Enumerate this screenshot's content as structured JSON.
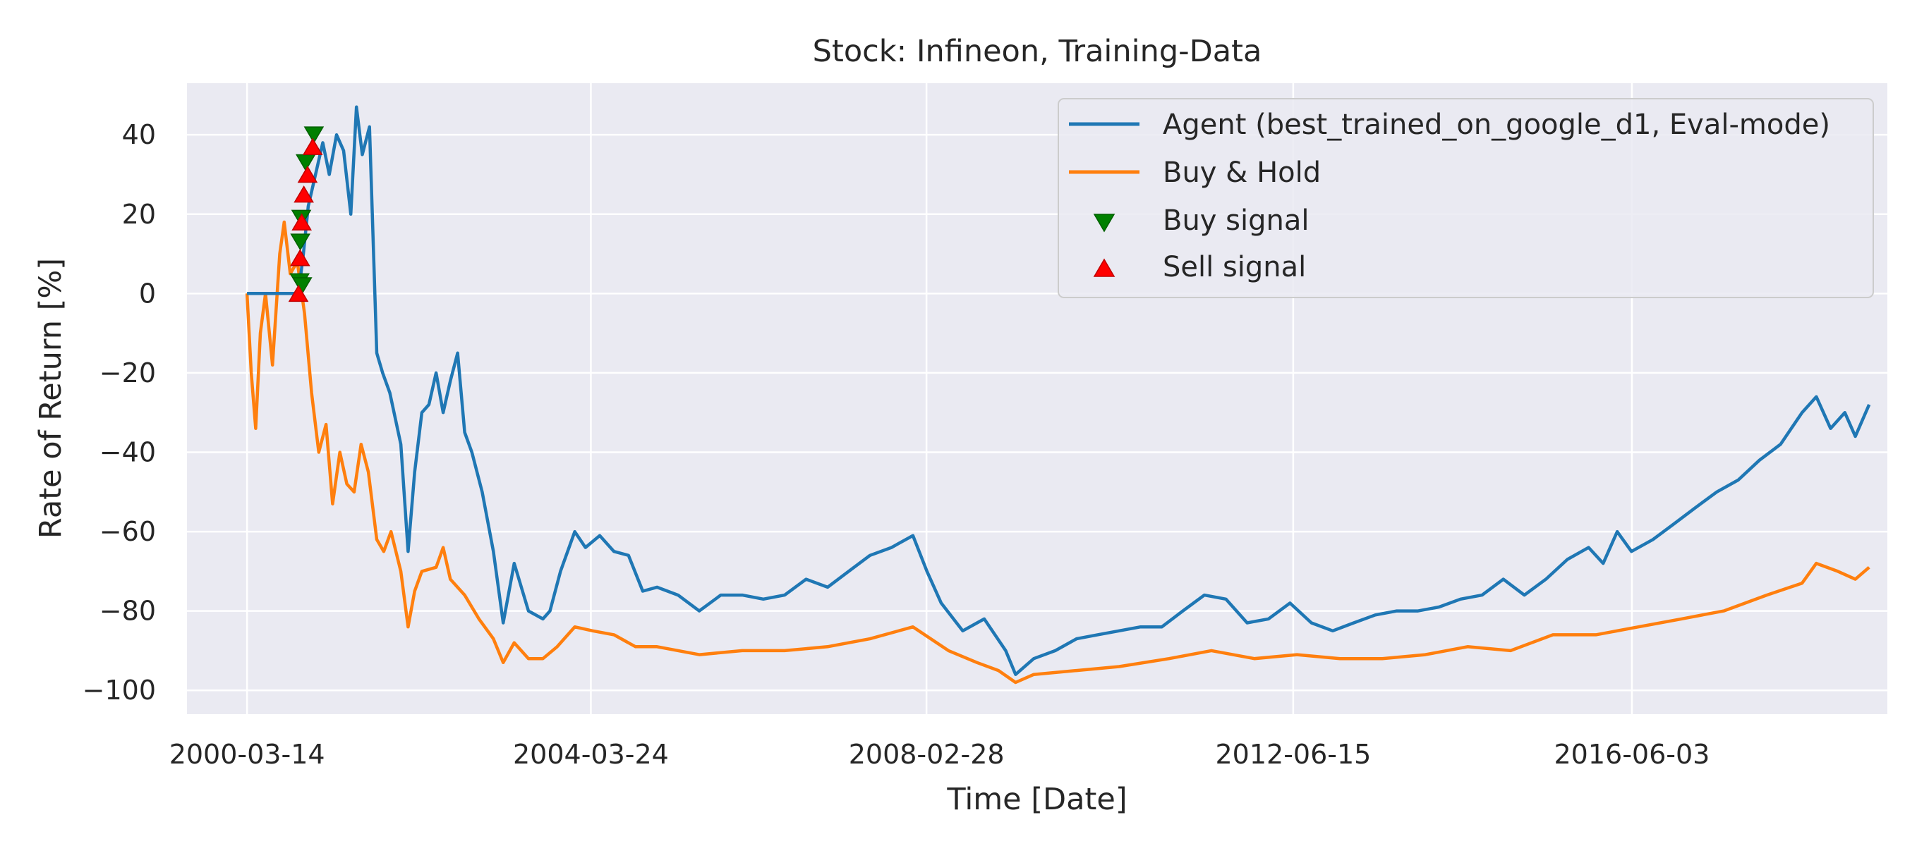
{
  "chart_data": {
    "type": "line",
    "title": "Stock: Infineon, Training-Data",
    "xlabel": "Time [Date]",
    "ylabel": "Rate of Return [%]",
    "xlim": [
      "1999-07-01",
      "2019-06-01"
    ],
    "ylim": [
      -106,
      53
    ],
    "xticks": [
      "2000-03-14",
      "2004-03-24",
      "2008-02-28",
      "2012-06-15",
      "2016-06-03"
    ],
    "yticks": [
      -100,
      -80,
      -60,
      -40,
      -20,
      0,
      20,
      40
    ],
    "grid": true,
    "legend_position": "top-right",
    "colors": {
      "background": "#eaeaf2",
      "grid": "#ffffff",
      "agent": "#1f77b4",
      "buy_hold": "#ff7f0e",
      "buy_signal": "#008000",
      "sell_signal": "#ff0000"
    },
    "series": [
      {
        "name": "Agent (best_trained_on_google_d1, Eval-mode)",
        "color": "#1f77b4",
        "points": [
          [
            "2000-03-14",
            0
          ],
          [
            "2000-06-01",
            0
          ],
          [
            "2000-09-01",
            0
          ],
          [
            "2000-10-20",
            0
          ],
          [
            "2000-11-10",
            10
          ],
          [
            "2000-12-01",
            22
          ],
          [
            "2001-01-01",
            30
          ],
          [
            "2001-02-01",
            38
          ],
          [
            "2001-03-01",
            30
          ],
          [
            "2001-04-01",
            40
          ],
          [
            "2001-05-01",
            36
          ],
          [
            "2001-06-01",
            20
          ],
          [
            "2001-06-25",
            47
          ],
          [
            "2001-07-20",
            35
          ],
          [
            "2001-08-20",
            42
          ],
          [
            "2001-09-20",
            -15
          ],
          [
            "2001-10-15",
            -20
          ],
          [
            "2001-11-15",
            -25
          ],
          [
            "2002-01-01",
            -38
          ],
          [
            "2002-02-01",
            -65
          ],
          [
            "2002-03-01",
            -45
          ],
          [
            "2002-04-01",
            -30
          ],
          [
            "2002-05-01",
            -28
          ],
          [
            "2002-06-01",
            -20
          ],
          [
            "2002-07-01",
            -30
          ],
          [
            "2002-08-01",
            -22
          ],
          [
            "2002-09-01",
            -15
          ],
          [
            "2002-10-01",
            -35
          ],
          [
            "2002-11-01",
            -40
          ],
          [
            "2002-12-15",
            -50
          ],
          [
            "2003-02-01",
            -65
          ],
          [
            "2003-03-15",
            -83
          ],
          [
            "2003-05-01",
            -68
          ],
          [
            "2003-07-01",
            -80
          ],
          [
            "2003-09-01",
            -82
          ],
          [
            "2003-10-01",
            -80
          ],
          [
            "2003-11-15",
            -70
          ],
          [
            "2004-01-15",
            -60
          ],
          [
            "2004-03-01",
            -64
          ],
          [
            "2004-05-01",
            -61
          ],
          [
            "2004-07-01",
            -65
          ],
          [
            "2004-09-01",
            -66
          ],
          [
            "2004-11-01",
            -75
          ],
          [
            "2005-01-01",
            -74
          ],
          [
            "2005-04-01",
            -76
          ],
          [
            "2005-07-01",
            -80
          ],
          [
            "2005-10-01",
            -76
          ],
          [
            "2006-01-01",
            -76
          ],
          [
            "2006-04-01",
            -77
          ],
          [
            "2006-07-01",
            -76
          ],
          [
            "2006-10-01",
            -72
          ],
          [
            "2007-01-01",
            -74
          ],
          [
            "2007-04-01",
            -70
          ],
          [
            "2007-07-01",
            -66
          ],
          [
            "2007-10-01",
            -64
          ],
          [
            "2008-01-01",
            -61
          ],
          [
            "2008-03-01",
            -70
          ],
          [
            "2008-05-01",
            -78
          ],
          [
            "2008-08-01",
            -85
          ],
          [
            "2008-11-01",
            -82
          ],
          [
            "2009-02-01",
            -90
          ],
          [
            "2009-03-15",
            -96
          ],
          [
            "2009-06-01",
            -92
          ],
          [
            "2009-09-01",
            -90
          ],
          [
            "2009-12-01",
            -87
          ],
          [
            "2010-03-01",
            -86
          ],
          [
            "2010-06-01",
            -85
          ],
          [
            "2010-09-01",
            -84
          ],
          [
            "2010-12-01",
            -84
          ],
          [
            "2011-03-01",
            -80
          ],
          [
            "2011-06-01",
            -76
          ],
          [
            "2011-09-01",
            -77
          ],
          [
            "2011-12-01",
            -83
          ],
          [
            "2012-03-01",
            -82
          ],
          [
            "2012-06-01",
            -78
          ],
          [
            "2012-09-01",
            -83
          ],
          [
            "2012-12-01",
            -85
          ],
          [
            "2013-03-01",
            -83
          ],
          [
            "2013-06-01",
            -81
          ],
          [
            "2013-09-01",
            -80
          ],
          [
            "2013-12-01",
            -80
          ],
          [
            "2014-03-01",
            -79
          ],
          [
            "2014-06-01",
            -77
          ],
          [
            "2014-09-01",
            -76
          ],
          [
            "2014-12-01",
            -72
          ],
          [
            "2015-03-01",
            -76
          ],
          [
            "2015-06-01",
            -72
          ],
          [
            "2015-09-01",
            -67
          ],
          [
            "2015-12-01",
            -64
          ],
          [
            "2016-02-01",
            -68
          ],
          [
            "2016-04-01",
            -60
          ],
          [
            "2016-06-01",
            -65
          ],
          [
            "2016-09-01",
            -62
          ],
          [
            "2016-12-01",
            -58
          ],
          [
            "2017-03-01",
            -54
          ],
          [
            "2017-06-01",
            -50
          ],
          [
            "2017-09-01",
            -47
          ],
          [
            "2017-12-01",
            -42
          ],
          [
            "2018-03-01",
            -38
          ],
          [
            "2018-06-01",
            -30
          ],
          [
            "2018-08-01",
            -26
          ],
          [
            "2018-10-01",
            -34
          ],
          [
            "2018-12-01",
            -30
          ],
          [
            "2019-01-15",
            -36
          ],
          [
            "2019-03-15",
            -28
          ]
        ]
      },
      {
        "name": "Buy & Hold",
        "color": "#ff7f0e",
        "points": [
          [
            "2000-03-14",
            0
          ],
          [
            "2000-04-01",
            -20
          ],
          [
            "2000-04-20",
            -34
          ],
          [
            "2000-05-10",
            -10
          ],
          [
            "2000-06-01",
            0
          ],
          [
            "2000-07-01",
            -18
          ],
          [
            "2000-08-01",
            10
          ],
          [
            "2000-08-20",
            18
          ],
          [
            "2000-09-15",
            5
          ],
          [
            "2000-10-15",
            8
          ],
          [
            "2000-11-15",
            -5
          ],
          [
            "2000-12-15",
            -25
          ],
          [
            "2001-01-15",
            -40
          ],
          [
            "2001-02-15",
            -33
          ],
          [
            "2001-03-15",
            -53
          ],
          [
            "2001-04-15",
            -40
          ],
          [
            "2001-05-15",
            -48
          ],
          [
            "2001-06-15",
            -50
          ],
          [
            "2001-07-15",
            -38
          ],
          [
            "2001-08-15",
            -45
          ],
          [
            "2001-09-20",
            -62
          ],
          [
            "2001-10-20",
            -65
          ],
          [
            "2001-11-20",
            -60
          ],
          [
            "2002-01-01",
            -70
          ],
          [
            "2002-02-01",
            -84
          ],
          [
            "2002-03-01",
            -75
          ],
          [
            "2002-04-01",
            -70
          ],
          [
            "2002-06-01",
            -69
          ],
          [
            "2002-07-01",
            -64
          ],
          [
            "2002-08-01",
            -72
          ],
          [
            "2002-10-01",
            -76
          ],
          [
            "2002-12-01",
            -82
          ],
          [
            "2003-02-01",
            -87
          ],
          [
            "2003-03-15",
            -93
          ],
          [
            "2003-05-01",
            -88
          ],
          [
            "2003-07-01",
            -92
          ],
          [
            "2003-09-01",
            -92
          ],
          [
            "2003-11-01",
            -89
          ],
          [
            "2004-01-15",
            -84
          ],
          [
            "2004-04-01",
            -85
          ],
          [
            "2004-07-01",
            -86
          ],
          [
            "2004-10-01",
            -89
          ],
          [
            "2005-01-01",
            -89
          ],
          [
            "2005-07-01",
            -91
          ],
          [
            "2006-01-01",
            -90
          ],
          [
            "2006-07-01",
            -90
          ],
          [
            "2007-01-01",
            -89
          ],
          [
            "2007-07-01",
            -87
          ],
          [
            "2008-01-01",
            -84
          ],
          [
            "2008-06-01",
            -90
          ],
          [
            "2008-10-01",
            -93
          ],
          [
            "2009-01-01",
            -95
          ],
          [
            "2009-03-15",
            -98
          ],
          [
            "2009-06-01",
            -96
          ],
          [
            "2009-12-01",
            -95
          ],
          [
            "2010-06-01",
            -94
          ],
          [
            "2011-01-01",
            -92
          ],
          [
            "2011-07-01",
            -90
          ],
          [
            "2012-01-01",
            -92
          ],
          [
            "2012-07-01",
            -91
          ],
          [
            "2013-01-01",
            -92
          ],
          [
            "2013-07-01",
            -92
          ],
          [
            "2014-01-01",
            -91
          ],
          [
            "2014-07-01",
            -89
          ],
          [
            "2015-01-01",
            -90
          ],
          [
            "2015-07-01",
            -86
          ],
          [
            "2016-01-01",
            -86
          ],
          [
            "2016-07-01",
            -84
          ],
          [
            "2017-01-01",
            -82
          ],
          [
            "2017-07-01",
            -80
          ],
          [
            "2018-01-01",
            -76
          ],
          [
            "2018-06-01",
            -73
          ],
          [
            "2018-08-01",
            -68
          ],
          [
            "2018-11-01",
            -70
          ],
          [
            "2019-01-15",
            -72
          ],
          [
            "2019-03-15",
            -69
          ]
        ]
      }
    ],
    "markers": [
      {
        "name": "Buy signal",
        "symbol": "triangle-down",
        "color": "#008000",
        "points": [
          [
            "2000-10-25",
            3
          ],
          [
            "2000-10-28",
            13
          ],
          [
            "2000-11-01",
            19
          ],
          [
            "2000-11-05",
            2
          ],
          [
            "2000-11-20",
            33
          ],
          [
            "2000-12-25",
            40
          ]
        ]
      },
      {
        "name": "Sell signal",
        "symbol": "triangle-up",
        "color": "#ff0000",
        "points": [
          [
            "2000-10-20",
            0
          ],
          [
            "2000-10-27",
            9
          ],
          [
            "2000-11-03",
            18
          ],
          [
            "2000-11-12",
            25
          ],
          [
            "2000-11-28",
            30
          ],
          [
            "2000-12-20",
            37
          ]
        ]
      }
    ]
  }
}
